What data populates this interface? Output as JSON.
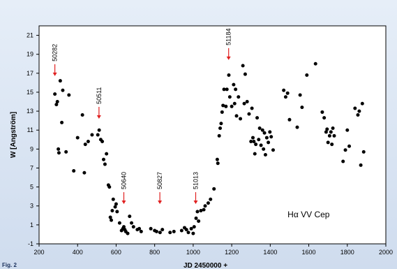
{
  "figure_label": "Fig. 2",
  "chart_data": {
    "type": "scatter",
    "title": "",
    "xlabel": "JD 2450000 +",
    "ylabel": "W [Angström]",
    "xlim": [
      200,
      2000
    ],
    "ylim": [
      -1,
      22
    ],
    "x_ticks": [
      200,
      400,
      600,
      800,
      1000,
      1200,
      1400,
      1600,
      1800,
      2000
    ],
    "y_ticks": [
      -1,
      1,
      3,
      5,
      7,
      9,
      11,
      13,
      15,
      17,
      19,
      21
    ],
    "grid": false,
    "legend": "Hα VV Cep",
    "legend_position": "bottom-right",
    "marker_color": "#000000",
    "arrow_color": "#e02020",
    "annotations": [
      {
        "label": "50282",
        "x": 282,
        "y": 16.7
      },
      {
        "label": "50511",
        "x": 511,
        "y": 12.2
      },
      {
        "label": "50640",
        "x": 640,
        "y": 3.2
      },
      {
        "label": "50827",
        "x": 827,
        "y": 3.2
      },
      {
        "label": "51013",
        "x": 1013,
        "y": 3.2
      },
      {
        "label": "51184",
        "x": 1184,
        "y": 18.4
      }
    ],
    "series": [
      {
        "points": [
          [
            282,
            14.8
          ],
          [
            290,
            13.7
          ],
          [
            295,
            14.0
          ],
          [
            300,
            9.0
          ],
          [
            303,
            8.6
          ],
          [
            310,
            16.2
          ],
          [
            318,
            11.8
          ],
          [
            323,
            15.2
          ],
          [
            340,
            8.7
          ],
          [
            355,
            14.7
          ],
          [
            380,
            6.7
          ],
          [
            400,
            10.2
          ],
          [
            425,
            12.6
          ],
          [
            435,
            6.5
          ],
          [
            440,
            9.5
          ],
          [
            455,
            9.8
          ],
          [
            475,
            10.5
          ],
          [
            505,
            10.5
          ],
          [
            512,
            11.0
          ],
          [
            520,
            10.0
          ],
          [
            528,
            9.8
          ],
          [
            535,
            7.9
          ],
          [
            542,
            7.4
          ],
          [
            550,
            8.5
          ],
          [
            560,
            5.2
          ],
          [
            565,
            5.0
          ],
          [
            570,
            1.8
          ],
          [
            575,
            1.5
          ],
          [
            580,
            2.5
          ],
          [
            585,
            3.7
          ],
          [
            595,
            2.9
          ],
          [
            600,
            3.2
          ],
          [
            605,
            2.4
          ],
          [
            618,
            1.2
          ],
          [
            628,
            0.4
          ],
          [
            635,
            0.6
          ],
          [
            640,
            0.8
          ],
          [
            645,
            0.5
          ],
          [
            650,
            0.3
          ],
          [
            660,
            0.1
          ],
          [
            670,
            1.9
          ],
          [
            680,
            1.2
          ],
          [
            690,
            0.8
          ],
          [
            710,
            0.5
          ],
          [
            720,
            0.6
          ],
          [
            730,
            0.3
          ],
          [
            780,
            0.6
          ],
          [
            800,
            0.4
          ],
          [
            810,
            0.3
          ],
          [
            828,
            0.2
          ],
          [
            840,
            0.5
          ],
          [
            880,
            0.2
          ],
          [
            900,
            0.3
          ],
          [
            940,
            0.4
          ],
          [
            955,
            0.7
          ],
          [
            965,
            0.5
          ],
          [
            975,
            0.2
          ],
          [
            990,
            0.6
          ],
          [
            1000,
            0.1
          ],
          [
            1005,
            0.8
          ],
          [
            1015,
            1.7
          ],
          [
            1022,
            2.4
          ],
          [
            1028,
            1.4
          ],
          [
            1040,
            2.5
          ],
          [
            1055,
            2.6
          ],
          [
            1062,
            3.0
          ],
          [
            1078,
            3.3
          ],
          [
            1090,
            3.7
          ],
          [
            1108,
            4.8
          ],
          [
            1125,
            7.9
          ],
          [
            1128,
            7.5
          ],
          [
            1135,
            10.4
          ],
          [
            1140,
            11.2
          ],
          [
            1145,
            11.7
          ],
          [
            1150,
            12.9
          ],
          [
            1155,
            13.6
          ],
          [
            1160,
            15.3
          ],
          [
            1170,
            13.5
          ],
          [
            1175,
            15.3
          ],
          [
            1185,
            16.8
          ],
          [
            1190,
            14.5
          ],
          [
            1200,
            13.5
          ],
          [
            1210,
            15.8
          ],
          [
            1215,
            13.8
          ],
          [
            1220,
            15.3
          ],
          [
            1225,
            12.5
          ],
          [
            1235,
            14.5
          ],
          [
            1245,
            12.2
          ],
          [
            1258,
            17.8
          ],
          [
            1265,
            13.8
          ],
          [
            1270,
            16.9
          ],
          [
            1280,
            14.0
          ],
          [
            1290,
            12.7
          ],
          [
            1300,
            9.8
          ],
          [
            1305,
            13.3
          ],
          [
            1310,
            10.2
          ],
          [
            1315,
            9.8
          ],
          [
            1320,
            8.5
          ],
          [
            1325,
            9.5
          ],
          [
            1332,
            12.3
          ],
          [
            1340,
            10.0
          ],
          [
            1345,
            11.2
          ],
          [
            1352,
            9.4
          ],
          [
            1360,
            11.0
          ],
          [
            1365,
            9.0
          ],
          [
            1370,
            10.7
          ],
          [
            1375,
            8.4
          ],
          [
            1382,
            10.2
          ],
          [
            1390,
            9.7
          ],
          [
            1398,
            10.8
          ],
          [
            1405,
            10.3
          ],
          [
            1415,
            8.9
          ],
          [
            1470,
            15.2
          ],
          [
            1480,
            14.5
          ],
          [
            1490,
            14.9
          ],
          [
            1500,
            12.1
          ],
          [
            1540,
            11.3
          ],
          [
            1555,
            14.7
          ],
          [
            1565,
            13.4
          ],
          [
            1590,
            16.8
          ],
          [
            1635,
            18.0
          ],
          [
            1670,
            12.9
          ],
          [
            1680,
            12.3
          ],
          [
            1690,
            10.8
          ],
          [
            1695,
            11.1
          ],
          [
            1700,
            9.7
          ],
          [
            1708,
            10.4
          ],
          [
            1715,
            10.8
          ],
          [
            1720,
            9.5
          ],
          [
            1725,
            11.2
          ],
          [
            1732,
            10.4
          ],
          [
            1778,
            7.7
          ],
          [
            1790,
            8.9
          ],
          [
            1800,
            11.0
          ],
          [
            1810,
            9.3
          ],
          [
            1840,
            13.3
          ],
          [
            1855,
            12.6
          ],
          [
            1862,
            13.0
          ],
          [
            1870,
            7.3
          ],
          [
            1878,
            13.8
          ],
          [
            1885,
            8.7
          ]
        ]
      }
    ]
  }
}
